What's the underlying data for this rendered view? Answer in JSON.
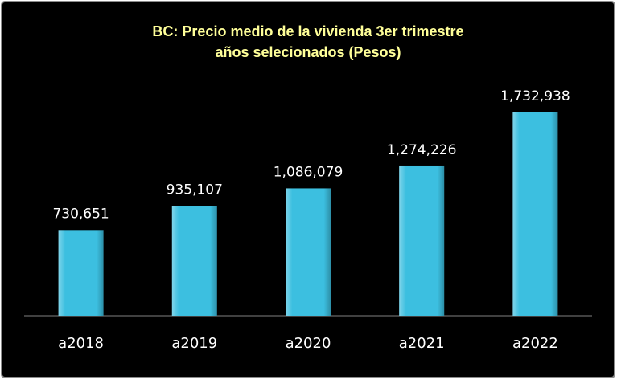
{
  "chart_data": {
    "type": "bar",
    "title": "BC: Precio medio de la vivienda 3er trimestre",
    "subtitle": "años selecionados  (Pesos)",
    "categories": [
      "a2018",
      "a2019",
      "a2020",
      "a2021",
      "a2022"
    ],
    "values": [
      730651,
      935107,
      1086079,
      1274226,
      1732938
    ],
    "value_labels": [
      "730,651",
      "935,107",
      "1,086,079",
      "1,274,226",
      "1,732,938"
    ],
    "color": "#3cbfe0"
  }
}
